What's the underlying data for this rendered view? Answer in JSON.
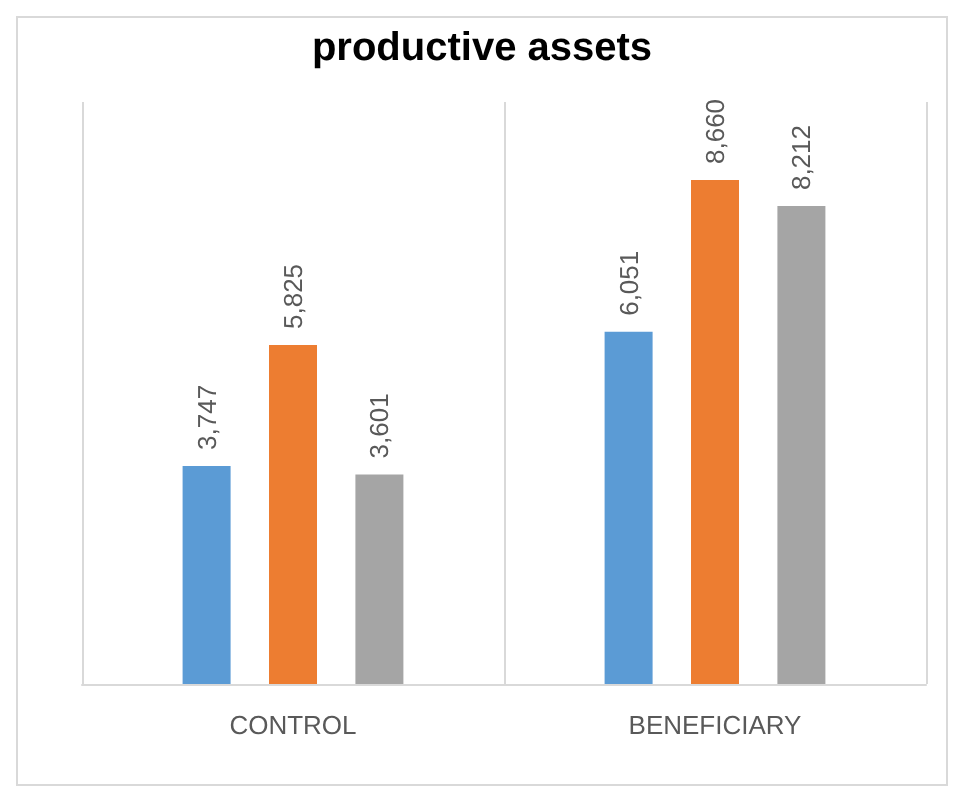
{
  "chart_data": {
    "type": "bar",
    "title": "productive assets",
    "categories": [
      "CONTROL",
      "BENEFICIARY"
    ],
    "series": [
      {
        "color": "#5b9bd5",
        "values": [
          3747,
          6051
        ],
        "value_labels": [
          "3,747",
          "6,051"
        ]
      },
      {
        "color": "#ed7d31",
        "values": [
          5825,
          8660
        ],
        "value_labels": [
          "5,825",
          "8,660"
        ]
      },
      {
        "color": "#a5a5a5",
        "values": [
          3601,
          8212
        ],
        "value_labels": [
          "3,601",
          "8,212"
        ]
      }
    ],
    "grid": "x"
  }
}
